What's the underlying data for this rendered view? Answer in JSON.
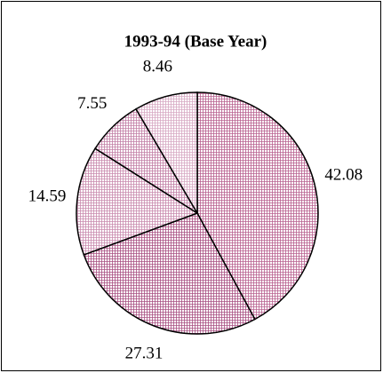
{
  "chart_data": {
    "type": "pie",
    "title": "1993-94 (Base Year)",
    "categories": [
      null,
      null,
      null,
      null,
      null
    ],
    "values": [
      42.08,
      27.31,
      14.59,
      7.55,
      8.46
    ],
    "colors": [
      "#b8608f",
      "#a84f82",
      "#c98aae",
      "#c27ea5",
      "#d7a8c3"
    ]
  }
}
